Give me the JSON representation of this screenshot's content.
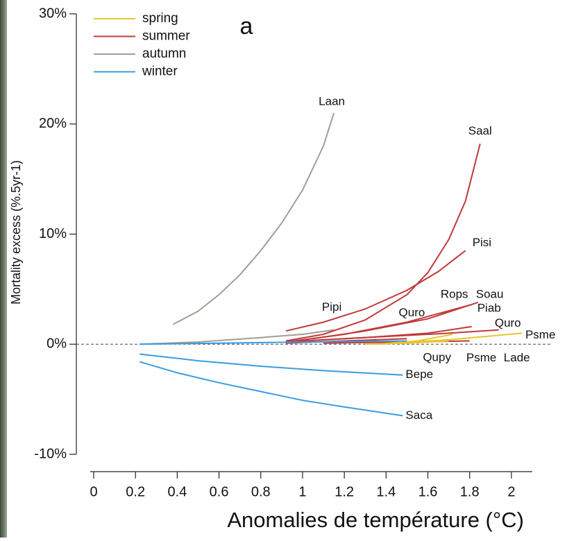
{
  "chart_data": {
    "type": "line",
    "title": "a",
    "x_label": "Anomalies de température (°C)",
    "y_label": "Mortality excess (%.5yr-1)",
    "xlim": [
      0,
      2.1
    ],
    "ylim": [
      -10,
      30
    ],
    "xticks": [
      0,
      0.2,
      0.4,
      0.6,
      0.8,
      1,
      1.2,
      1.4,
      1.6,
      1.8,
      2
    ],
    "yticks": [
      {
        "value": -10,
        "label": "-10%"
      },
      {
        "value": 0,
        "label": "0%"
      },
      {
        "value": 10,
        "label": "10%"
      },
      {
        "value": 20,
        "label": "20%"
      },
      {
        "value": 30,
        "label": "30%"
      }
    ],
    "legend": [
      {
        "name": "spring",
        "color": "#e8c62a"
      },
      {
        "name": "summer",
        "color": "#c0393b"
      },
      {
        "name": "autumn",
        "color": "#a39d93"
      },
      {
        "name": "winter",
        "color": "#3a9be0"
      }
    ],
    "series": [
      {
        "name": "Laan",
        "color": "#a39d93",
        "x": [
          0.38,
          0.5,
          0.6,
          0.7,
          0.8,
          0.9,
          1.0,
          1.1,
          1.15
        ],
        "values": [
          1.8,
          3,
          4.5,
          6.3,
          8.5,
          11,
          14,
          18,
          21
        ]
      },
      {
        "name": "Pipi",
        "color": "#a39d93",
        "x": [
          0.22,
          0.5,
          0.8,
          1.0,
          1.15
        ],
        "values": [
          0,
          0.2,
          0.6,
          0.9,
          1.3
        ]
      },
      {
        "name": "Saal",
        "color": "#c0393b",
        "x": [
          0.92,
          1.1,
          1.3,
          1.5,
          1.6,
          1.7,
          1.78,
          1.85
        ],
        "values": [
          0.3,
          0.9,
          2.2,
          4.5,
          6.5,
          9.5,
          13,
          18.2
        ]
      },
      {
        "name": "Pisi",
        "color": "#c0393b",
        "x": [
          0.92,
          1.1,
          1.3,
          1.5,
          1.65,
          1.78
        ],
        "values": [
          1.2,
          2.0,
          3.2,
          4.9,
          6.6,
          8.5
        ]
      },
      {
        "name": "Rops",
        "color": "#c0393b",
        "x": [
          0.92,
          1.2,
          1.5,
          1.81
        ],
        "values": [
          0.2,
          0.9,
          2.0,
          3.6
        ]
      },
      {
        "name": "Soau",
        "color": "#c0393b",
        "x": [
          1.05,
          1.3,
          1.6,
          1.84
        ],
        "values": [
          0.5,
          1.2,
          2.3,
          3.8
        ]
      },
      {
        "name": "Piab",
        "color": "#c0393b",
        "x": [
          0.92,
          1.3,
          1.6,
          1.81
        ],
        "values": [
          0.2,
          0.6,
          1.0,
          1.6
        ]
      },
      {
        "name": "Quro",
        "color": "#c0393b",
        "x": [
          1.0,
          1.4,
          1.7,
          1.94
        ],
        "values": [
          0.3,
          0.7,
          1.0,
          1.3
        ]
      },
      {
        "name": "Quro",
        "color": "#c0393b",
        "x": [
          0.92,
          1.2,
          1.5
        ],
        "values": [
          0.1,
          0.3,
          0.5
        ]
      },
      {
        "name": "Lade",
        "color": "#c0393b",
        "x": [
          1.1,
          1.5,
          1.8
        ],
        "values": [
          0.1,
          0.2,
          0.3
        ]
      },
      {
        "name": "Psme",
        "color": "#e8c62a",
        "x": [
          1.35,
          1.7,
          2.05
        ],
        "values": [
          0,
          0.4,
          1.0
        ]
      },
      {
        "name": "Psme",
        "color": "#e8c62a",
        "x": [
          1.3,
          1.5,
          1.7
        ],
        "values": [
          0,
          0.1,
          0.3
        ]
      },
      {
        "name": "Qupy",
        "color": "#e8c62a",
        "x": [
          1.35,
          1.55,
          1.72
        ],
        "values": [
          0,
          0.3,
          0.9
        ]
      },
      {
        "name": null,
        "color": "#3a9be0",
        "x": [
          0.22,
          0.6,
          1.0,
          1.5
        ],
        "values": [
          0,
          0.1,
          0.2,
          0.3
        ]
      },
      {
        "name": "Bepe",
        "color": "#3a9be0",
        "x": [
          0.22,
          0.5,
          0.8,
          1.1,
          1.48
        ],
        "values": [
          -0.9,
          -1.5,
          -2.0,
          -2.4,
          -2.8
        ]
      },
      {
        "name": "Saca",
        "color": "#3a9be0",
        "x": [
          0.22,
          0.4,
          0.6,
          0.8,
          1.0,
          1.2,
          1.48
        ],
        "values": [
          -1.6,
          -2.6,
          -3.5,
          -4.3,
          -5.1,
          -5.7,
          -6.5
        ]
      }
    ]
  }
}
